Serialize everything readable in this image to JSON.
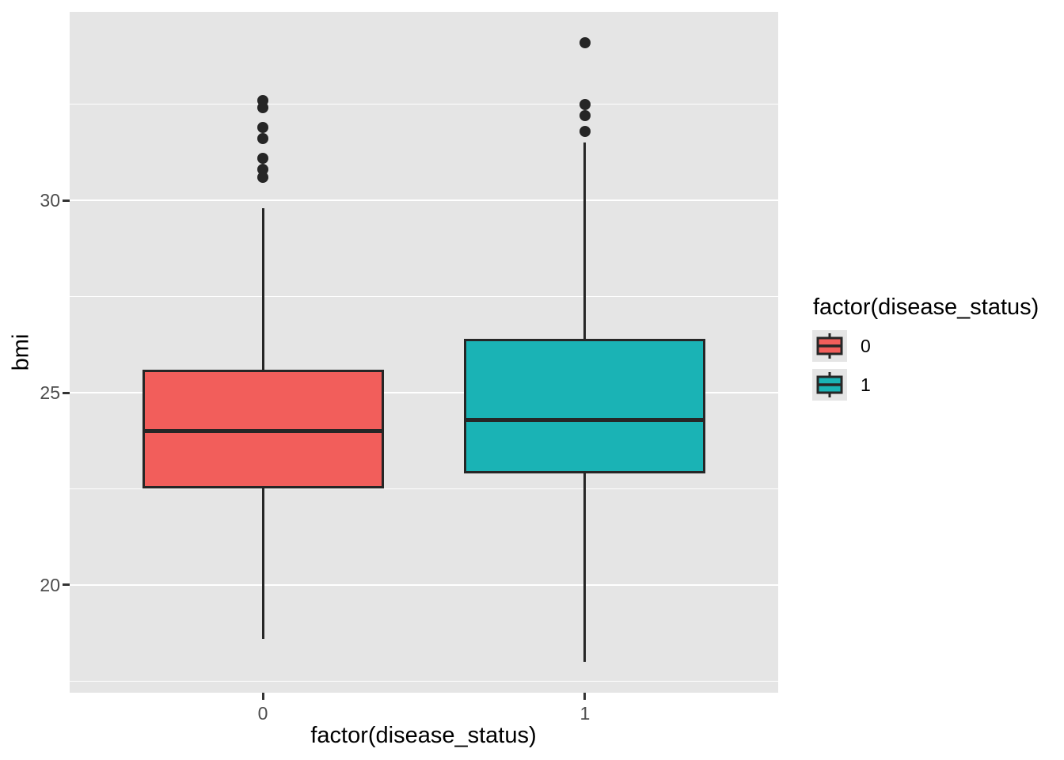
{
  "chart_data": {
    "type": "boxplot",
    "title": "",
    "xlabel": "factor(disease_status)",
    "ylabel": "bmi",
    "x_ticks": [
      "0",
      "1"
    ],
    "y_ticks": [
      20,
      25,
      30
    ],
    "y_minor_gridlines": [
      17.5,
      22.5,
      27.5,
      32.5
    ],
    "ylim": [
      17.2,
      34.9
    ],
    "legend_position": "right",
    "grid": true,
    "panel_background": "#E5E5E5",
    "gridline_color": "#FFFFFF",
    "stroke_color": "#262626",
    "series": [
      {
        "name": "0",
        "category": "0",
        "fill": "#F25E5B",
        "whisker_low": 18.6,
        "q1": 22.5,
        "median": 24.0,
        "q3": 25.6,
        "whisker_high": 29.8,
        "outliers": [
          30.6,
          30.8,
          31.1,
          31.6,
          31.9,
          32.4,
          32.6
        ]
      },
      {
        "name": "1",
        "category": "1",
        "fill": "#1AB3B5",
        "whisker_low": 18.0,
        "q1": 22.9,
        "median": 24.3,
        "q3": 26.4,
        "whisker_high": 31.5,
        "outliers": [
          31.8,
          32.2,
          32.5,
          34.1
        ]
      }
    ]
  },
  "legend": {
    "title": "factor(disease_status)",
    "items": [
      {
        "label": "0",
        "fill": "#F25E5B"
      },
      {
        "label": "1",
        "fill": "#1AB3B5"
      }
    ]
  }
}
